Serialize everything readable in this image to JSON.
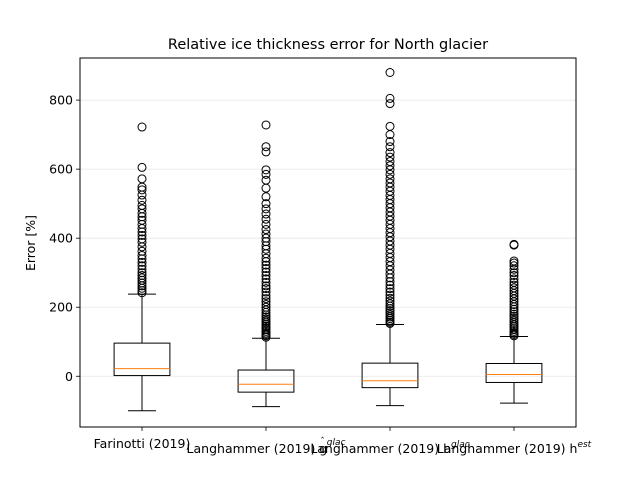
{
  "chart_data": {
    "type": "boxplot",
    "title": "Relative ice thickness error for North glacier",
    "ylabel": "Error [%]",
    "xlabel": "",
    "ylim": [
      -147,
      922
    ],
    "yticks": [
      0,
      200,
      400,
      600,
      800
    ],
    "grid": "horizontal",
    "colors": {
      "box": "#000000",
      "median": "#ff7f0e",
      "grid": "#e6e6e6"
    },
    "categories": [
      {
        "label": "Farinotti (2019)",
        "label_sup": "",
        "label_hat": false
      },
      {
        "label": "Langhammer (2019) g",
        "label_sup": "glac",
        "label_hat": true
      },
      {
        "label": "Langhammer (2019) h",
        "label_sup": "glac",
        "label_hat": false
      },
      {
        "label": "Langhammer (2019) h",
        "label_sup": "est",
        "label_hat": false
      }
    ],
    "boxes": [
      {
        "whisker_low": -100,
        "q1": 2,
        "median": 22,
        "q3": 96,
        "whisker_high": 238,
        "outliers": [
          242,
          248,
          255,
          262,
          270,
          278,
          285,
          292,
          300,
          310,
          320,
          330,
          340,
          350,
          362,
          375,
          388,
          398,
          408,
          418,
          428,
          440,
          452,
          462,
          472,
          485,
          495,
          510,
          525,
          540,
          548,
          572,
          605,
          722
        ]
      },
      {
        "whisker_low": -88,
        "q1": -46,
        "median": -23,
        "q3": 18,
        "whisker_high": 110,
        "outliers": [
          113,
          117,
          121,
          125,
          130,
          135,
          140,
          145,
          150,
          155,
          160,
          166,
          172,
          178,
          185,
          192,
          200,
          208,
          216,
          225,
          234,
          244,
          254,
          262,
          272,
          282,
          292,
          302,
          312,
          322,
          332,
          342,
          355,
          368,
          378,
          390,
          400,
          412,
          425,
          440,
          455,
          470,
          485,
          500,
          520,
          545,
          568,
          585,
          598,
          650,
          665,
          728
        ]
      },
      {
        "whisker_low": -85,
        "q1": -33,
        "median": -13,
        "q3": 38,
        "whisker_high": 150,
        "outliers": [
          153,
          157,
          162,
          167,
          172,
          178,
          184,
          190,
          196,
          203,
          210,
          218,
          226,
          235,
          244,
          254,
          264,
          274,
          285,
          296,
          308,
          320,
          332,
          344,
          356,
          368,
          380,
          392,
          404,
          416,
          428,
          440,
          452,
          464,
          476,
          488,
          500,
          512,
          524,
          536,
          548,
          560,
          572,
          585,
          598,
          610,
          622,
          635,
          648,
          665,
          680,
          700,
          724,
          790,
          805,
          880
        ]
      },
      {
        "whisker_low": -78,
        "q1": -18,
        "median": 5,
        "q3": 37,
        "whisker_high": 115,
        "outliers": [
          117,
          121,
          125,
          130,
          135,
          140,
          145,
          150,
          156,
          162,
          168,
          174,
          180,
          187,
          194,
          201,
          208,
          216,
          224,
          232,
          240,
          248,
          256,
          264,
          272,
          282,
          292,
          300,
          310,
          320,
          328,
          334,
          380,
          382
        ]
      }
    ]
  }
}
